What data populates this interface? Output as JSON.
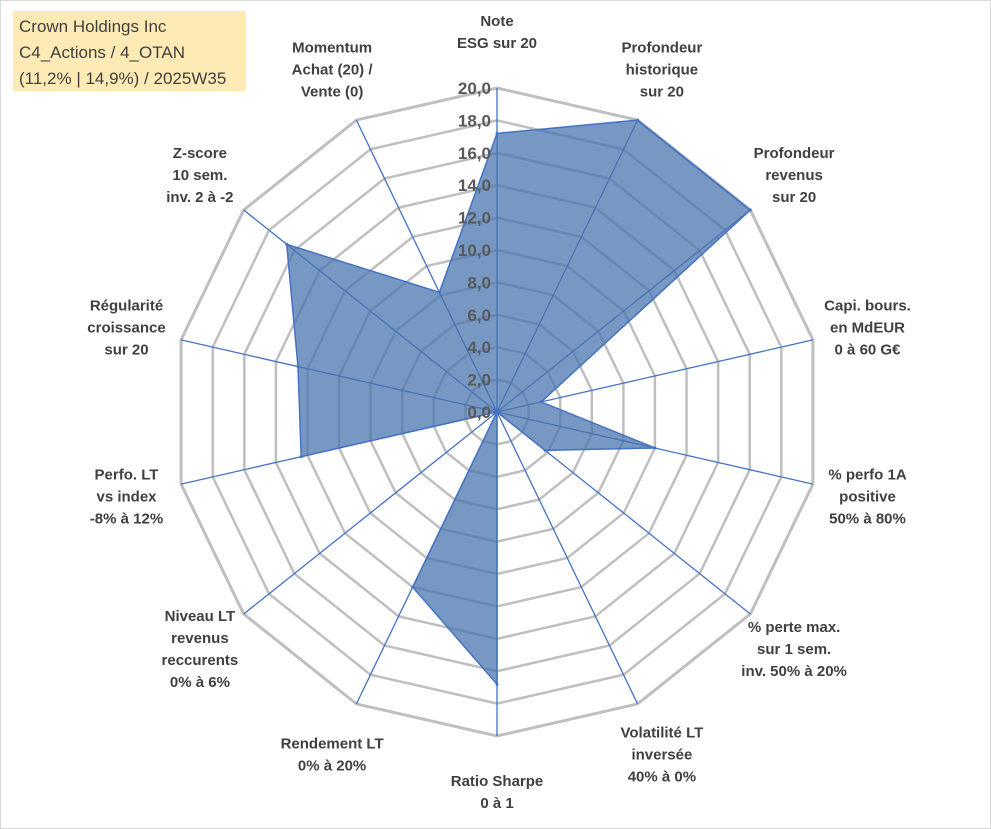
{
  "title_box": {
    "line1": "Crown Holdings Inc",
    "line2": "C4_Actions / 4_OTAN",
    "line3": "(11,2% | 14,9%) / 2025W35"
  },
  "colors": {
    "fill": "#4a76ad",
    "stroke": "#4472c4",
    "grid": "#bfbfbf",
    "spoke": "#4472c4",
    "title_bg": "#fdeab4"
  },
  "chart_data": {
    "type": "radar",
    "rmin": 0,
    "rmax": 20,
    "tick_labels": [
      "0,0",
      "2,0",
      "4,0",
      "6,0",
      "8,0",
      "10,0",
      "12,0",
      "14,0",
      "16,0",
      "18,0",
      "20,0"
    ],
    "axes": [
      {
        "label": [
          "Note",
          "ESG sur 20"
        ]
      },
      {
        "label": [
          "Profondeur",
          "historique",
          "sur 20"
        ]
      },
      {
        "label": [
          "Profondeur",
          "revenus",
          "sur 20"
        ]
      },
      {
        "label": [
          "Capi. bours.",
          "en MdEUR",
          "0 à 60 G€"
        ]
      },
      {
        "label": [
          "% perfo 1A",
          "positive",
          "50% à 80%"
        ]
      },
      {
        "label": [
          "% perte max.",
          "sur 1 sem.",
          "inv. 50% à 20%"
        ]
      },
      {
        "label": [
          "Volatilité LT",
          "inversée",
          "40% à 0%"
        ]
      },
      {
        "label": [
          "Ratio Sharpe",
          "0 à 1"
        ]
      },
      {
        "label": [
          "Rendement LT",
          "0% à 20%"
        ]
      },
      {
        "label": [
          "Niveau LT",
          "revenus",
          "reccurents",
          "0% à 6%"
        ]
      },
      {
        "label": [
          "Perfo. LT",
          "vs index",
          "-8% à 12%"
        ]
      },
      {
        "label": [
          "Régularité",
          "croissance",
          "sur 20"
        ]
      },
      {
        "label": [
          "Z-score",
          "10 sem.",
          "inv. 2 à -2"
        ]
      },
      {
        "label": [
          "Momentum",
          "Achat (20) /",
          "Vente (0)"
        ]
      }
    ],
    "series": [
      {
        "values": [
          17.2,
          20.0,
          20.0,
          2.8,
          10.0,
          3.8,
          0.0,
          16.8,
          12.0,
          0.0,
          12.4,
          12.6,
          16.6,
          8.2
        ]
      }
    ]
  }
}
